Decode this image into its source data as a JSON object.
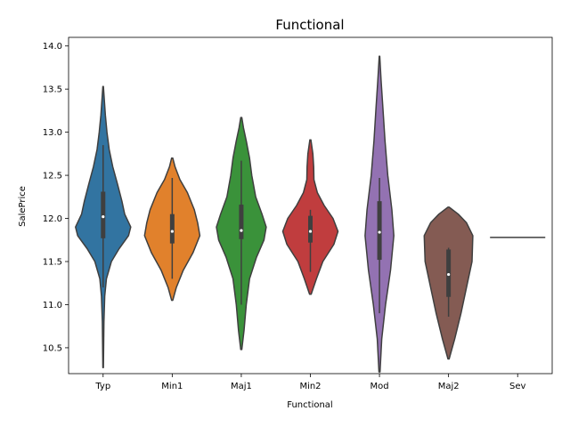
{
  "chart_data": {
    "type": "violin",
    "title": "Functional",
    "xlabel": "Functional",
    "ylabel": "SalePrice",
    "ylim": [
      10.2,
      14.1
    ],
    "yticks": [
      "10.5",
      "11.0",
      "11.5",
      "12.0",
      "12.5",
      "13.0",
      "13.5",
      "14.0"
    ],
    "grid": false,
    "categories": [
      "Typ",
      "Min1",
      "Maj1",
      "Min2",
      "Mod",
      "Maj2",
      "Sev"
    ],
    "series": [
      {
        "category": "Typ",
        "color": "#3274a1",
        "min": 10.27,
        "max": 13.53,
        "q1": 11.77,
        "median": 12.02,
        "q3": 12.31,
        "whisker_low": 11.2,
        "whisker_high": 12.85,
        "profile": [
          [
            10.27,
            0.01
          ],
          [
            10.8,
            0.03
          ],
          [
            11.1,
            0.06
          ],
          [
            11.3,
            0.12
          ],
          [
            11.5,
            0.3
          ],
          [
            11.65,
            0.58
          ],
          [
            11.8,
            0.92
          ],
          [
            11.9,
            1.0
          ],
          [
            12.05,
            0.78
          ],
          [
            12.2,
            0.68
          ],
          [
            12.4,
            0.52
          ],
          [
            12.6,
            0.35
          ],
          [
            12.8,
            0.22
          ],
          [
            13.0,
            0.14
          ],
          [
            13.2,
            0.08
          ],
          [
            13.53,
            0.01
          ]
        ]
      },
      {
        "category": "Min1",
        "color": "#e1812c",
        "min": 11.05,
        "max": 12.7,
        "q1": 11.71,
        "median": 11.85,
        "q3": 12.05,
        "whisker_low": 11.3,
        "whisker_high": 12.47,
        "profile": [
          [
            11.05,
            0.02
          ],
          [
            11.2,
            0.15
          ],
          [
            11.4,
            0.4
          ],
          [
            11.6,
            0.75
          ],
          [
            11.8,
            1.0
          ],
          [
            11.95,
            0.92
          ],
          [
            12.1,
            0.8
          ],
          [
            12.3,
            0.55
          ],
          [
            12.45,
            0.28
          ],
          [
            12.6,
            0.1
          ],
          [
            12.7,
            0.02
          ]
        ]
      },
      {
        "category": "Maj1",
        "color": "#3a923a",
        "min": 10.48,
        "max": 13.17,
        "q1": 11.76,
        "median": 11.86,
        "q3": 12.16,
        "whisker_low": 11.0,
        "whisker_high": 12.67,
        "profile": [
          [
            10.48,
            0.02
          ],
          [
            10.7,
            0.1
          ],
          [
            11.0,
            0.18
          ],
          [
            11.3,
            0.3
          ],
          [
            11.55,
            0.55
          ],
          [
            11.75,
            0.82
          ],
          [
            11.9,
            0.9
          ],
          [
            12.05,
            0.75
          ],
          [
            12.25,
            0.52
          ],
          [
            12.5,
            0.38
          ],
          [
            12.7,
            0.3
          ],
          [
            12.9,
            0.18
          ],
          [
            13.05,
            0.08
          ],
          [
            13.17,
            0.02
          ]
        ]
      },
      {
        "category": "Min2",
        "color": "#c03d3e",
        "min": 11.12,
        "max": 12.91,
        "q1": 11.72,
        "median": 11.85,
        "q3": 12.03,
        "whisker_low": 11.38,
        "whisker_high": 12.1,
        "profile": [
          [
            11.12,
            0.03
          ],
          [
            11.3,
            0.22
          ],
          [
            11.5,
            0.45
          ],
          [
            11.7,
            0.85
          ],
          [
            11.85,
            1.0
          ],
          [
            12.0,
            0.82
          ],
          [
            12.15,
            0.5
          ],
          [
            12.3,
            0.25
          ],
          [
            12.45,
            0.13
          ],
          [
            12.6,
            0.12
          ],
          [
            12.75,
            0.09
          ],
          [
            12.91,
            0.02
          ]
        ]
      },
      {
        "category": "Mod",
        "color": "#9372b2",
        "min": 10.22,
        "max": 13.88,
        "q1": 11.52,
        "median": 11.84,
        "q3": 12.2,
        "whisker_low": 10.9,
        "whisker_high": 12.47,
        "profile": [
          [
            10.22,
            0.02
          ],
          [
            10.6,
            0.08
          ],
          [
            11.0,
            0.22
          ],
          [
            11.4,
            0.4
          ],
          [
            11.8,
            0.52
          ],
          [
            12.1,
            0.45
          ],
          [
            12.5,
            0.3
          ],
          [
            12.9,
            0.2
          ],
          [
            13.3,
            0.12
          ],
          [
            13.6,
            0.06
          ],
          [
            13.88,
            0.01
          ]
        ]
      },
      {
        "category": "Maj2",
        "color": "#845b53",
        "min": 10.37,
        "max": 12.13,
        "q1": 11.09,
        "median": 11.35,
        "q3": 11.64,
        "whisker_low": 10.86,
        "whisker_high": 11.66,
        "profile": [
          [
            10.37,
            0.02
          ],
          [
            10.6,
            0.22
          ],
          [
            10.9,
            0.45
          ],
          [
            11.2,
            0.65
          ],
          [
            11.5,
            0.85
          ],
          [
            11.8,
            0.88
          ],
          [
            11.95,
            0.65
          ],
          [
            12.05,
            0.35
          ],
          [
            12.13,
            0.02
          ]
        ]
      },
      {
        "category": "Sev",
        "color": "#d684bd",
        "value": 11.78,
        "single": true
      }
    ]
  }
}
